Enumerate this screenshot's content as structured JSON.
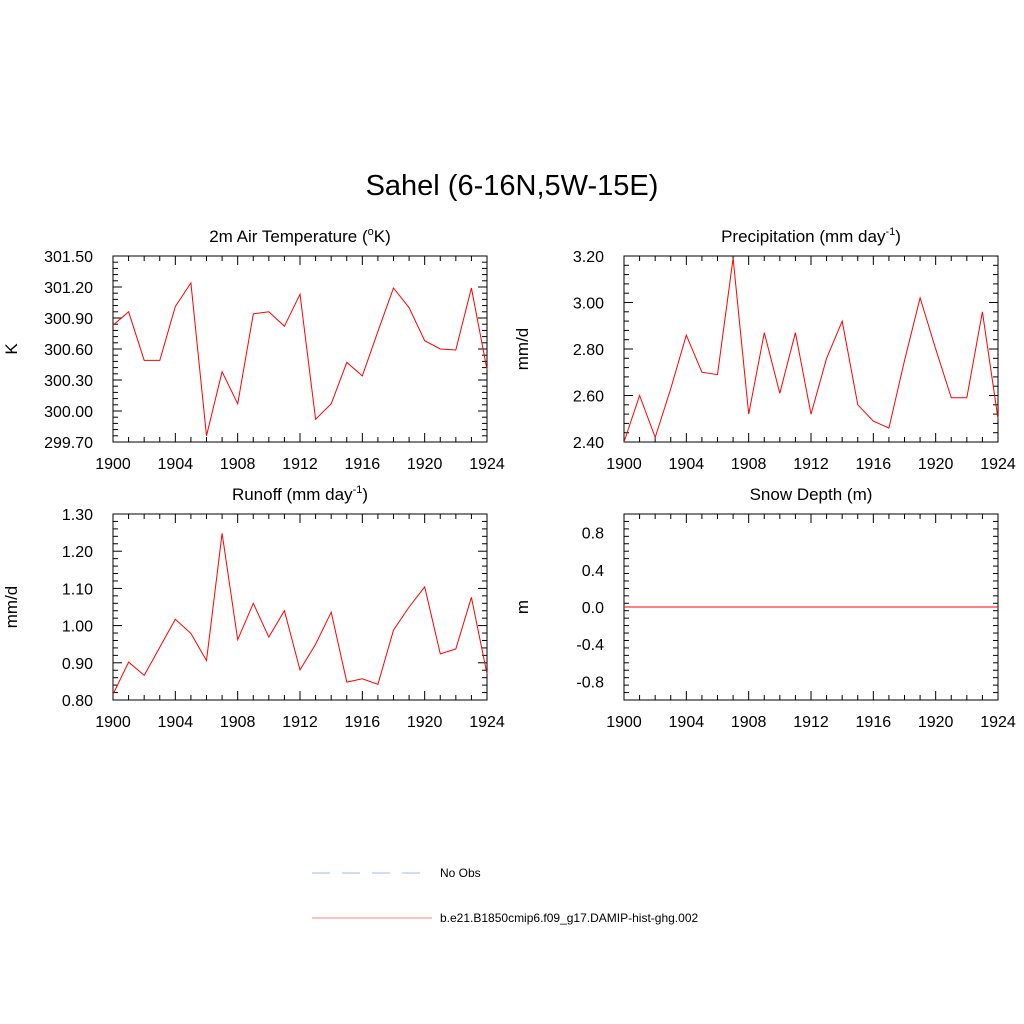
{
  "title": "Sahel (6-16N,5W-15E)",
  "colors": {
    "model": "#ff0000",
    "obs": "#aab4ff"
  },
  "legend": {
    "obs": "No Obs",
    "model": "b.e21.B1850cmip6.f09_g17.DAMIP-hist-ghg.002"
  },
  "chart_data": [
    {
      "type": "line",
      "title": "2m Air Temperature (",
      "title_sup": "o",
      "title_after": "K)",
      "ylabel": "K",
      "xlim": [
        1900,
        1924
      ],
      "ylim": [
        299.7,
        301.5
      ],
      "xticks": [
        "1900",
        "1904",
        "1908",
        "1912",
        "1916",
        "1920",
        "1924"
      ],
      "yticks": [
        "299.70",
        "300.00",
        "300.30",
        "300.60",
        "300.90",
        "301.20",
        "301.50"
      ],
      "series": [
        {
          "x": [
            1900,
            1901,
            1902,
            1903,
            1904,
            1905,
            1906,
            1907,
            1908,
            1909,
            1910,
            1911,
            1912,
            1913,
            1914,
            1915,
            1916,
            1917,
            1918,
            1919,
            1920,
            1921,
            1922,
            1923,
            1924
          ],
          "values": [
            300.83,
            300.96,
            300.49,
            300.49,
            301.01,
            301.24,
            299.76,
            300.38,
            300.07,
            300.94,
            300.96,
            300.82,
            301.13,
            299.92,
            300.07,
            300.47,
            300.34,
            300.77,
            301.19,
            301.0,
            300.68,
            300.6,
            300.59,
            301.19,
            300.4
          ]
        }
      ]
    },
    {
      "type": "line",
      "title": "Precipitation (mm day",
      "title_sup": "-1",
      "title_after": ")",
      "ylabel": "mm/d",
      "xlim": [
        1900,
        1924
      ],
      "ylim": [
        2.4,
        3.2
      ],
      "xticks": [
        "1900",
        "1904",
        "1908",
        "1912",
        "1916",
        "1920",
        "1924"
      ],
      "yticks": [
        "2.40",
        "2.60",
        "2.80",
        "3.00",
        "3.20"
      ],
      "series": [
        {
          "x": [
            1900,
            1901,
            1902,
            1903,
            1904,
            1905,
            1906,
            1907,
            1908,
            1909,
            1910,
            1911,
            1912,
            1913,
            1914,
            1915,
            1916,
            1917,
            1918,
            1919,
            1920,
            1921,
            1922,
            1923,
            1924
          ],
          "values": [
            2.4,
            2.6,
            2.42,
            2.63,
            2.86,
            2.7,
            2.69,
            3.19,
            2.52,
            2.87,
            2.61,
            2.87,
            2.52,
            2.76,
            2.92,
            2.56,
            2.49,
            2.46,
            2.75,
            3.02,
            2.8,
            2.59,
            2.59,
            2.96,
            2.5
          ]
        }
      ]
    },
    {
      "type": "line",
      "title": "Runoff (mm day",
      "title_sup": "-1",
      "title_after": ")",
      "ylabel": "mm/d",
      "xlim": [
        1900,
        1924
      ],
      "ylim": [
        0.8,
        1.3
      ],
      "xticks": [
        "1900",
        "1904",
        "1908",
        "1912",
        "1916",
        "1920",
        "1924"
      ],
      "yticks": [
        "0.80",
        "0.90",
        "1.00",
        "1.10",
        "1.20",
        "1.30"
      ],
      "series": [
        {
          "x": [
            1900,
            1901,
            1902,
            1903,
            1904,
            1905,
            1906,
            1907,
            1908,
            1909,
            1910,
            1911,
            1912,
            1913,
            1914,
            1915,
            1916,
            1917,
            1918,
            1919,
            1920,
            1921,
            1922,
            1923,
            1924
          ],
          "values": [
            0.815,
            0.902,
            0.866,
            0.942,
            1.017,
            0.979,
            0.906,
            1.248,
            0.962,
            1.06,
            0.969,
            1.04,
            0.881,
            0.95,
            1.036,
            0.848,
            0.857,
            0.842,
            0.988,
            1.05,
            1.104,
            0.924,
            0.937,
            1.076,
            0.87
          ]
        }
      ]
    },
    {
      "type": "line",
      "title": "Snow Depth (m)",
      "title_sup": "",
      "title_after": "",
      "ylabel": "m",
      "xlim": [
        1900,
        1924
      ],
      "ylim": [
        -1.0,
        1.0
      ],
      "xticks": [
        "1900",
        "1904",
        "1908",
        "1912",
        "1916",
        "1920",
        "1924"
      ],
      "yticks": [
        "-0.8",
        "-0.4",
        "0.0",
        "0.4",
        "0.8"
      ],
      "series": [
        {
          "x": [
            1900,
            1924
          ],
          "values": [
            0.0,
            0.0
          ]
        }
      ]
    }
  ]
}
